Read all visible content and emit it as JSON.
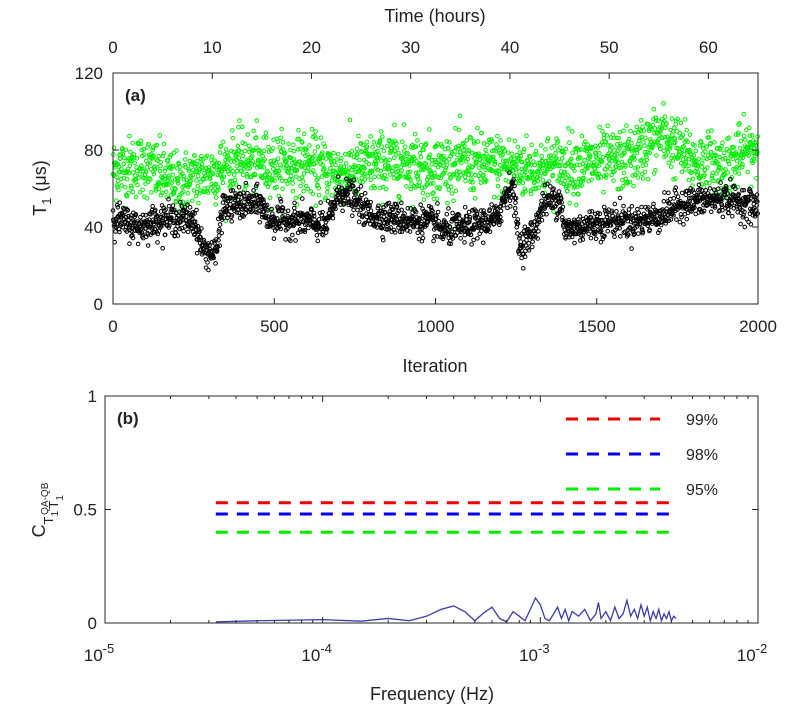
{
  "figure": {
    "colors": {
      "axis": "#262626",
      "background": "#ffffff",
      "qa_series": "#00ee00",
      "qb_series": "#000000",
      "coherence_line": "#3c3ca8",
      "p99": "#ee0000",
      "p98": "#0000ee",
      "p95": "#00ee00"
    }
  },
  "chart_data": [
    {
      "type": "scatter",
      "panel_label": "(a)",
      "xlabel": "Iteration",
      "ylabel_main": "T",
      "ylabel_sub": "1",
      "ylabel_unit": "(μs)",
      "xlim": [
        0,
        2000
      ],
      "ylim": [
        0,
        120
      ],
      "x_ticks": [
        0,
        500,
        1000,
        1500,
        2000
      ],
      "y_ticks": [
        0,
        40,
        80,
        120
      ],
      "top_axis": {
        "label": "Time (hours)",
        "hours_per_iteration": 0.0325,
        "ticks": [
          0,
          10,
          20,
          30,
          40,
          50,
          60
        ]
      },
      "series": [
        {
          "name": "green",
          "color": "#00ee00",
          "n_points": 2000,
          "trend": [
            [
              0,
              70
            ],
            [
              100,
              72
            ],
            [
              200,
              62
            ],
            [
              300,
              68
            ],
            [
              400,
              74
            ],
            [
              500,
              72
            ],
            [
              600,
              73
            ],
            [
              700,
              68
            ],
            [
              800,
              72
            ],
            [
              900,
              74
            ],
            [
              1000,
              71
            ],
            [
              1100,
              73
            ],
            [
              1200,
              72
            ],
            [
              1300,
              70
            ],
            [
              1400,
              72
            ],
            [
              1500,
              73
            ],
            [
              1600,
              75
            ],
            [
              1700,
              88
            ],
            [
              1800,
              74
            ],
            [
              1900,
              72
            ],
            [
              2000,
              82
            ]
          ],
          "spread": 8
        },
        {
          "name": "black",
          "color": "#000000",
          "n_points": 2000,
          "trend": [
            [
              0,
              45
            ],
            [
              80,
              40
            ],
            [
              150,
              44
            ],
            [
              200,
              44
            ],
            [
              250,
              44
            ],
            [
              280,
              28
            ],
            [
              320,
              26
            ],
            [
              340,
              50
            ],
            [
              400,
              52
            ],
            [
              460,
              52
            ],
            [
              480,
              44
            ],
            [
              600,
              43
            ],
            [
              660,
              40
            ],
            [
              700,
              58
            ],
            [
              740,
              56
            ],
            [
              760,
              52
            ],
            [
              800,
              46
            ],
            [
              1000,
              42
            ],
            [
              1020,
              38
            ],
            [
              1100,
              40
            ],
            [
              1190,
              44
            ],
            [
              1220,
              58
            ],
            [
              1240,
              62
            ],
            [
              1260,
              30
            ],
            [
              1300,
              36
            ],
            [
              1340,
              54
            ],
            [
              1390,
              54
            ],
            [
              1400,
              38
            ],
            [
              1500,
              42
            ],
            [
              1580,
              44
            ],
            [
              1600,
              42
            ],
            [
              1700,
              46
            ],
            [
              1760,
              52
            ],
            [
              1900,
              55
            ],
            [
              1960,
              52
            ],
            [
              2000,
              50
            ]
          ],
          "spread": 4
        }
      ]
    },
    {
      "type": "line",
      "panel_label": "(b)",
      "xlabel": "Frequency (Hz)",
      "ylabel_main": "C",
      "ylabel_sub": "T",
      "ylabel_sub2": "1",
      "ylabel_sup": "QA",
      "ylabel_sup2": "QB",
      "ylabel_mid": "T",
      "ylabel_mid_sub": "1",
      "xscale": "log",
      "xlim": [
        1e-05,
        0.01
      ],
      "ylim": [
        0,
        1
      ],
      "x_ticks": [
        {
          "base": "10",
          "exp": "-5",
          "value": 1e-05
        },
        {
          "base": "10",
          "exp": "-4",
          "value": 0.0001
        },
        {
          "base": "10",
          "exp": "-3",
          "value": 0.001
        },
        {
          "base": "10",
          "exp": "-2",
          "value": 0.01
        }
      ],
      "y_ticks": [
        "0",
        "0.5",
        "1"
      ],
      "coherence": {
        "x": [
          3.23e-05,
          5e-05,
          0.0001,
          0.00015,
          0.0002,
          0.00025,
          0.0003,
          0.00035,
          0.0004,
          0.00045,
          0.0005,
          0.00055,
          0.0006,
          0.00065,
          0.0007,
          0.00075,
          0.0008,
          0.00085,
          0.0009,
          0.00095,
          0.001,
          0.00105,
          0.0011,
          0.00115,
          0.0012,
          0.00125,
          0.0013,
          0.00135,
          0.0014,
          0.0015,
          0.0016,
          0.0017,
          0.0018,
          0.00185,
          0.0019,
          0.002,
          0.0021,
          0.0022,
          0.0023,
          0.0024,
          0.0025,
          0.0026,
          0.0027,
          0.0028,
          0.0029,
          0.003,
          0.0031,
          0.0032,
          0.0033,
          0.0034,
          0.0035,
          0.0036,
          0.0037,
          0.0038,
          0.0039,
          0.004,
          0.0041,
          0.0042
        ],
        "values": [
          0.005,
          0.01,
          0.015,
          0.008,
          0.02,
          0.01,
          0.03,
          0.06,
          0.075,
          0.05,
          0.01,
          0.045,
          0.07,
          0.02,
          0.005,
          0.05,
          0.03,
          0.01,
          0.06,
          0.11,
          0.08,
          0.02,
          0.01,
          0.04,
          0.07,
          0.02,
          0.06,
          0.01,
          0.05,
          0.03,
          0.06,
          0.01,
          0.04,
          0.09,
          0.02,
          0.05,
          0.01,
          0.07,
          0.02,
          0.04,
          0.1,
          0.03,
          0.06,
          0.02,
          0.08,
          0.03,
          0.07,
          0.01,
          0.05,
          0.02,
          0.06,
          0.01,
          0.04,
          0.02,
          0.05,
          0.01,
          0.03,
          0.02
        ]
      },
      "thresholds": [
        {
          "label": "99%",
          "value": 0.53,
          "color": "#ee0000"
        },
        {
          "label": "98%",
          "value": 0.48,
          "color": "#0000ee"
        },
        {
          "label": "95%",
          "value": 0.4,
          "color": "#00ee00"
        }
      ],
      "threshold_range": [
        3.23e-05,
        0.0042
      ]
    }
  ]
}
